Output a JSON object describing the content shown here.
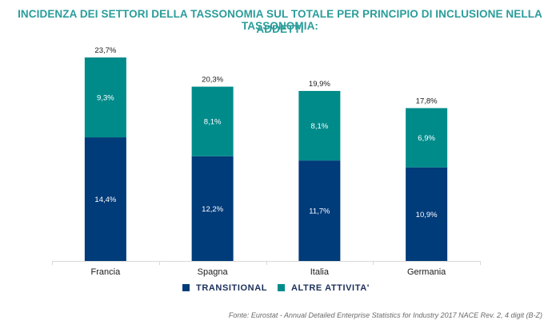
{
  "chart_data": {
    "type": "bar",
    "stacked": true,
    "title_line1": "INCIDENZA DEI SETTORI DELLA TASSONOMIA SUL TOTALE PER PRINCIPIO DI INCLUSIONE NELLA TASSONOMIA:",
    "title_line2": "ADDETTI",
    "categories": [
      "Francia",
      "Spagna",
      "Italia",
      "Germania"
    ],
    "series": [
      {
        "name": "TRANSITIONAL",
        "color": "#003b7a",
        "values": [
          14.4,
          12.2,
          11.7,
          10.9
        ],
        "labels": [
          "14,4%",
          "12,2%",
          "11,7%",
          "10,9%"
        ]
      },
      {
        "name": "ALTRE ATTIVITA'",
        "color": "#008b8b",
        "values": [
          9.3,
          8.1,
          8.1,
          6.9
        ],
        "labels": [
          "9,3%",
          "8,1%",
          "8,1%",
          "6,9%"
        ]
      }
    ],
    "totals": [
      23.7,
      20.3,
      19.9,
      17.8
    ],
    "total_labels": [
      "23,7%",
      "20,3%",
      "19,9%",
      "17,8%"
    ],
    "ylim": [
      0,
      25
    ],
    "grid": false,
    "legend_position": "bottom",
    "source": "Fonte: Eurostat - Annual Detailed Enterprise Statistics for Industry 2017 NACE Rev. 2, 4 digit (B-Z)"
  }
}
